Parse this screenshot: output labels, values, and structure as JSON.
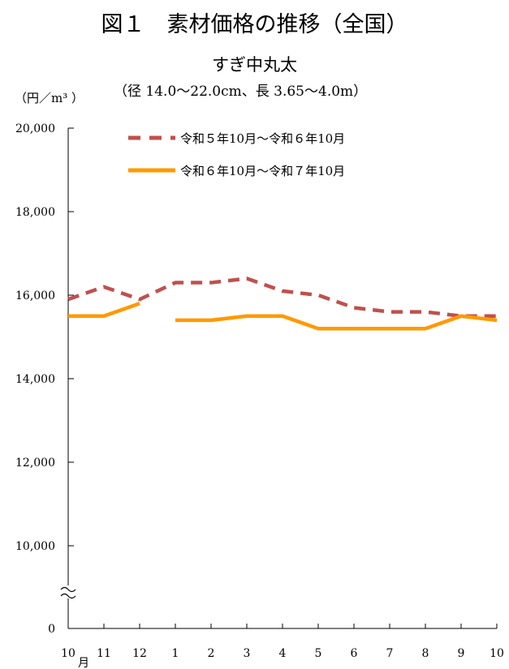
{
  "chart_data": {
    "type": "line",
    "title": "図１　素材価格の推移（全国）",
    "subtitle": "すぎ中丸太",
    "subtitle2": "（径 14.0～22.0cm、長 3.65～4.0m）",
    "ylabel": "（円／m³ ）",
    "categories": [
      "10",
      "11",
      "12",
      "1",
      "2",
      "3",
      "4",
      "5",
      "6",
      "7",
      "8",
      "9",
      "10"
    ],
    "first_category_suffix": "月",
    "y_ticks": [
      "0",
      "10,000",
      "12,000",
      "14,000",
      "16,000",
      "18,000",
      "20,000"
    ],
    "ylim": [
      10000,
      20000
    ],
    "axis_break": true,
    "grid": false,
    "legend_position": "top",
    "series": [
      {
        "name": "令和５年10月～令和６年10月",
        "color": "#C0504D",
        "dash": true,
        "values": [
          15900,
          16200,
          15900,
          16300,
          16300,
          16400,
          16100,
          16000,
          15700,
          15600,
          15600,
          15500,
          15500
        ]
      },
      {
        "name": "令和６年10月～令和７年10月",
        "color": "#FF9900",
        "dash": false,
        "values": [
          15500,
          15500,
          15800,
          15400,
          15400,
          15500,
          15500,
          15200,
          15200,
          15200,
          15200,
          15500,
          15400
        ],
        "line_break_after": "12"
      }
    ]
  }
}
